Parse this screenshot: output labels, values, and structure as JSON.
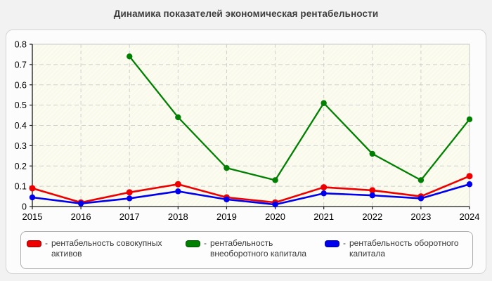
{
  "title": "Динамика показателей экономическая рентабельности",
  "chart_data": {
    "type": "line",
    "title": "Динамика показателей экономическая рентабельности",
    "x": [
      2015,
      2016,
      2017,
      2018,
      2019,
      2020,
      2021,
      2022,
      2023,
      2024
    ],
    "series": [
      {
        "name": "рентабельность совокупных активов",
        "color": "#ee0000",
        "values": [
          0.09,
          0.02,
          0.07,
          0.11,
          0.045,
          0.02,
          0.095,
          0.08,
          0.05,
          0.15
        ]
      },
      {
        "name": "рентабельность внеоборотного капитала",
        "color": "#008000",
        "values": [
          null,
          null,
          0.74,
          0.44,
          0.19,
          0.13,
          0.51,
          0.26,
          0.13,
          0.43
        ]
      },
      {
        "name": "рентабельность оборотного капитала",
        "color": "#0000ee",
        "values": [
          0.045,
          0.015,
          0.04,
          0.075,
          0.035,
          0.01,
          0.065,
          0.055,
          0.04,
          0.11
        ]
      }
    ],
    "xlabel": "",
    "ylabel": "",
    "ylim": [
      0,
      0.8
    ],
    "ytick_labels": [
      "0",
      "0.1",
      "0.2",
      "0.3",
      "0.4",
      "0.5",
      "0.6",
      "0.7",
      "0.8"
    ],
    "grid": "dashed",
    "legend_position": "bottom",
    "plot_bg": "#fafaeb",
    "grid_color": "#cfcfcf",
    "axis_color": "#1a1a1a"
  },
  "legend": {
    "items": [
      {
        "dash": "-",
        "line1": "рентабельность совокупных",
        "line2": "активов",
        "color": "#ee0000"
      },
      {
        "dash": "-",
        "line1": "рентабельность",
        "line2": "внеоборотного капитала",
        "color": "#008000"
      },
      {
        "dash": "-",
        "line1": "рентабельность оборотного",
        "line2": "капитала",
        "color": "#0000ee"
      }
    ]
  }
}
